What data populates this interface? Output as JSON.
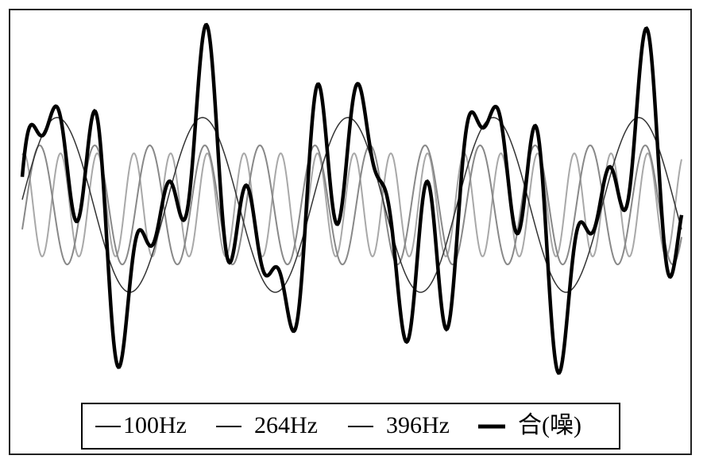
{
  "legend": {
    "items": [
      "100Hz",
      "264Hz",
      "396Hz",
      "合(噪)"
    ]
  }
}
